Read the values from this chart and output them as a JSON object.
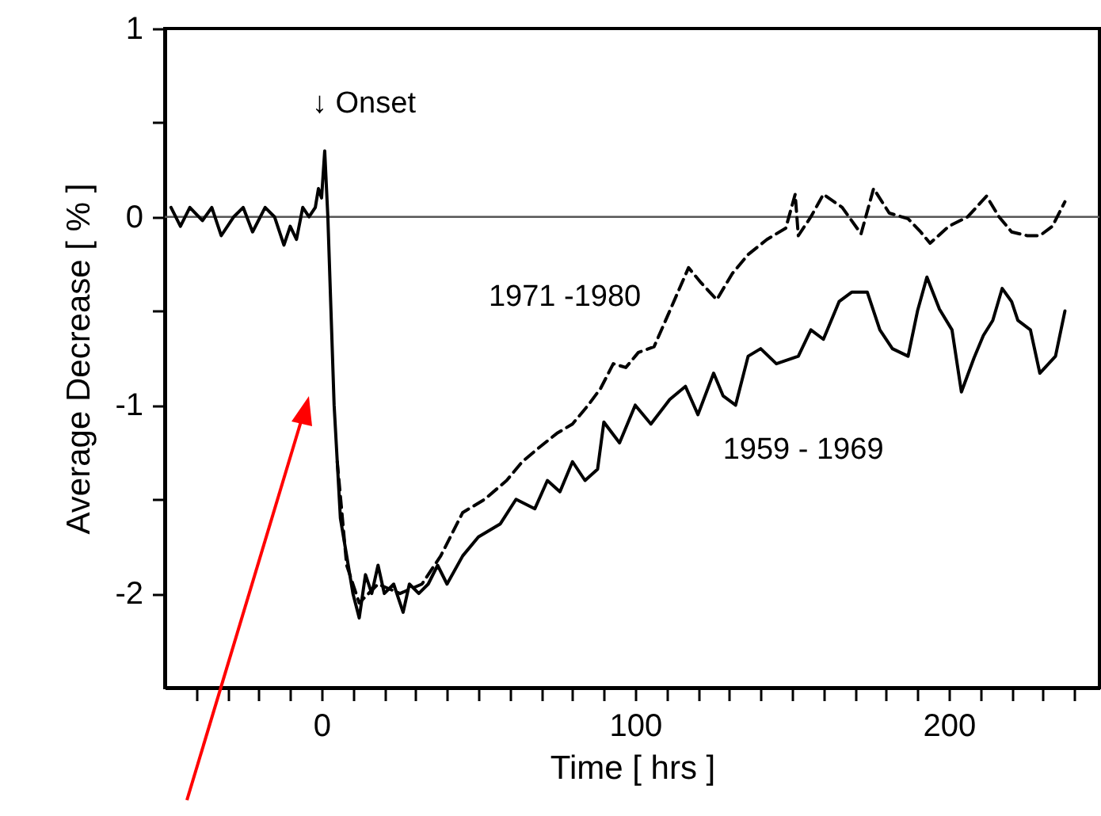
{
  "chart_data": {
    "type": "line",
    "xlabel": "Time  [ hrs ]",
    "ylabel": "Average Decrease  [ % ]",
    "xlim": [
      -50,
      248
    ],
    "ylim": [
      -2.5,
      1
    ],
    "xticks": [
      {
        "value": -40,
        "label": null
      },
      {
        "value": -30,
        "label": null
      },
      {
        "value": -20,
        "label": null
      },
      {
        "value": -10,
        "label": null
      },
      0,
      {
        "value": 10,
        "label": null
      },
      {
        "value": 20,
        "label": null
      },
      {
        "value": 30,
        "label": null
      },
      {
        "value": 40,
        "label": null
      },
      {
        "value": 50,
        "label": null
      },
      {
        "value": 60,
        "label": null
      },
      {
        "value": 70,
        "label": null
      },
      {
        "value": 80,
        "label": null
      },
      {
        "value": 90,
        "label": null
      },
      100,
      {
        "value": 110,
        "label": null
      },
      {
        "value": 120,
        "label": null
      },
      {
        "value": 130,
        "label": null
      },
      {
        "value": 140,
        "label": null
      },
      {
        "value": 150,
        "label": null
      },
      {
        "value": 160,
        "label": null
      },
      {
        "value": 170,
        "label": null
      },
      {
        "value": 180,
        "label": null
      },
      {
        "value": 190,
        "label": null
      },
      200,
      {
        "value": 210,
        "label": null
      },
      {
        "value": 220,
        "label": null
      },
      {
        "value": 230,
        "label": null
      },
      {
        "value": 240,
        "label": null
      }
    ],
    "yticks": [
      1,
      {
        "value": 0.5,
        "label": null
      },
      0,
      {
        "value": -0.5,
        "label": null
      },
      -1,
      {
        "value": -1.5,
        "label": null
      },
      -2
    ],
    "grid": false,
    "ref_lines": [
      {
        "axis": "y",
        "value": 0,
        "color": "#555555"
      }
    ],
    "annotations": [
      "↓ Onset"
    ],
    "series": [
      {
        "name": "1959 - 1969",
        "color": "#000000",
        "line_style": "solid",
        "x": [
          -48,
          -45,
          -42,
          -38,
          -35,
          -32,
          -28,
          -25,
          -22,
          -18,
          -15,
          -12,
          -10,
          -8,
          -6,
          -4,
          -2,
          -1,
          0,
          1,
          2,
          3,
          4,
          5,
          6,
          8,
          10,
          12,
          14,
          16,
          18,
          20,
          23,
          26,
          28,
          31,
          34,
          37,
          40,
          45,
          50,
          57,
          62,
          68,
          72,
          76,
          80,
          84,
          88,
          90,
          95,
          100,
          105,
          111,
          116,
          120,
          125,
          128,
          132,
          136,
          140,
          145,
          152,
          156,
          160,
          165,
          169,
          174,
          178,
          182,
          187,
          190,
          193,
          197,
          201,
          204,
          208,
          211,
          214,
          217,
          220,
          222,
          226,
          229,
          234,
          237
        ],
        "values": [
          0.05,
          -0.05,
          0.05,
          -0.02,
          0.05,
          -0.1,
          0.0,
          0.05,
          -0.08,
          0.05,
          0.0,
          -0.15,
          -0.05,
          -0.12,
          0.05,
          0.0,
          0.05,
          0.15,
          0.1,
          0.35,
          0.0,
          -0.5,
          -1.0,
          -1.3,
          -1.6,
          -1.8,
          -2.0,
          -2.13,
          -1.9,
          -2.0,
          -1.85,
          -2.0,
          -1.95,
          -2.1,
          -1.95,
          -2.0,
          -1.95,
          -1.85,
          -1.95,
          -1.8,
          -1.7,
          -1.63,
          -1.5,
          -1.55,
          -1.4,
          -1.46,
          -1.3,
          -1.4,
          -1.34,
          -1.09,
          -1.2,
          -1.0,
          -1.1,
          -0.97,
          -0.9,
          -1.05,
          -0.83,
          -0.95,
          -1.0,
          -0.74,
          -0.7,
          -0.78,
          -0.74,
          -0.6,
          -0.65,
          -0.45,
          -0.4,
          -0.4,
          -0.6,
          -0.7,
          -0.74,
          -0.5,
          -0.32,
          -0.49,
          -0.6,
          -0.93,
          -0.75,
          -0.63,
          -0.55,
          -0.38,
          -0.45,
          -0.55,
          -0.6,
          -0.83,
          -0.74,
          -0.5
        ]
      },
      {
        "name": "1971 -1980",
        "color": "#000000",
        "line_style": "dashed",
        "x": [
          5,
          8,
          12,
          18,
          25,
          32,
          38,
          45,
          52,
          59,
          64,
          69,
          75,
          80,
          85,
          89,
          93,
          97,
          101,
          106,
          111,
          117,
          121,
          126,
          131,
          136,
          142,
          148,
          151,
          152,
          156,
          160,
          166,
          172,
          176,
          181,
          187,
          191,
          194,
          200,
          206,
          212,
          216,
          220,
          225,
          229,
          233,
          237
        ],
        "values": [
          -1.3,
          -1.85,
          -2.05,
          -1.95,
          -2.0,
          -1.95,
          -1.8,
          -1.57,
          -1.5,
          -1.4,
          -1.3,
          -1.23,
          -1.15,
          -1.1,
          -1.0,
          -0.91,
          -0.78,
          -0.8,
          -0.72,
          -0.69,
          -0.5,
          -0.27,
          -0.35,
          -0.44,
          -0.3,
          -0.2,
          -0.12,
          -0.06,
          0.12,
          -0.1,
          0.0,
          0.12,
          0.05,
          -0.09,
          0.15,
          0.02,
          -0.01,
          -0.08,
          -0.14,
          -0.05,
          0.0,
          0.11,
          0.0,
          -0.08,
          -0.1,
          -0.1,
          -0.05,
          0.08
        ]
      }
    ]
  }
}
